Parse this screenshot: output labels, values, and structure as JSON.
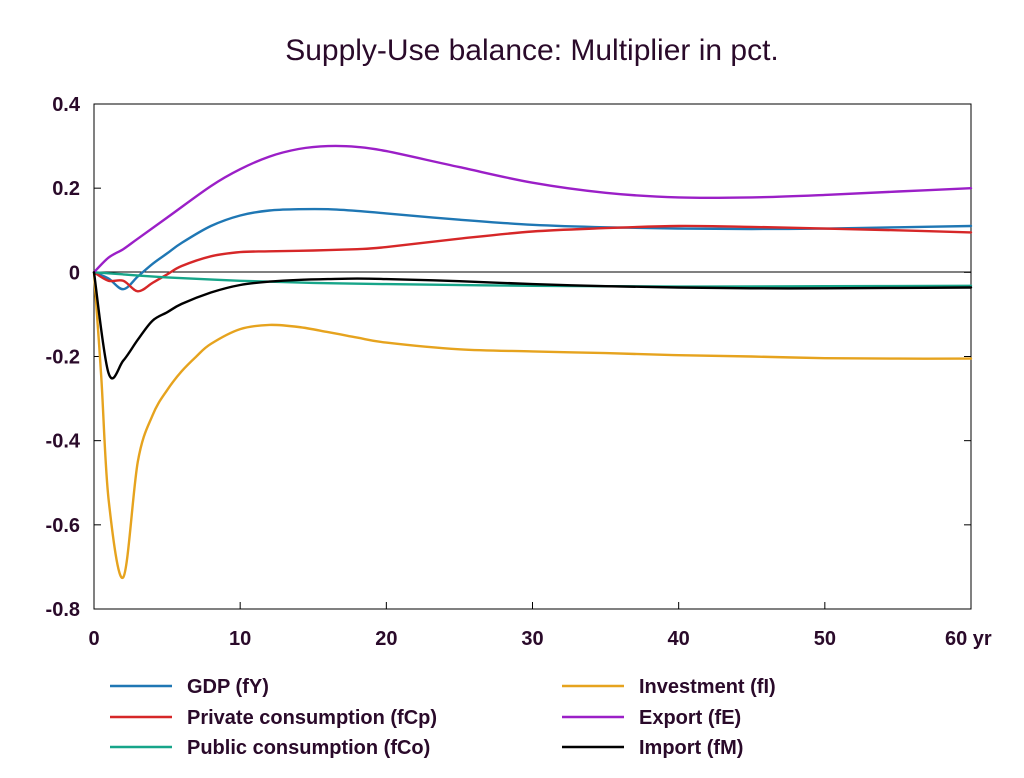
{
  "chart_data": {
    "type": "line",
    "title": "Supply-Use balance: Multiplier in pct.",
    "xlabel": "",
    "ylabel": "",
    "xlim": [
      0,
      60
    ],
    "ylim": [
      -0.8,
      0.4
    ],
    "x_ticks": [
      "0",
      "10",
      "20",
      "30",
      "40",
      "50",
      "60 yr"
    ],
    "x_tick_values": [
      0,
      10,
      20,
      30,
      40,
      50,
      60
    ],
    "y_ticks": [
      "0.4",
      "0.2",
      "0",
      "-0.2",
      "-0.4",
      "-0.6",
      "-0.8"
    ],
    "y_tick_values": [
      0.4,
      0.2,
      0,
      -0.2,
      -0.4,
      -0.6,
      -0.8
    ],
    "grid": false,
    "legend_position": "bottom",
    "series": [
      {
        "name": "GDP (fY)",
        "color": "#1f77b4",
        "x": [
          0,
          1,
          2,
          3,
          4,
          5,
          6,
          8,
          10,
          12,
          14,
          16,
          18,
          20,
          25,
          30,
          35,
          40,
          45,
          50,
          55,
          60
        ],
        "values": [
          0,
          -0.015,
          -0.04,
          -0.01,
          0.02,
          0.045,
          0.07,
          0.11,
          0.135,
          0.147,
          0.15,
          0.15,
          0.146,
          0.14,
          0.125,
          0.113,
          0.107,
          0.104,
          0.103,
          0.104,
          0.107,
          0.11
        ]
      },
      {
        "name": "Private consumption (fCp)",
        "color": "#d62728",
        "x": [
          0,
          1,
          2,
          3,
          4,
          5,
          6,
          8,
          10,
          12,
          15,
          18,
          20,
          25,
          30,
          35,
          40,
          45,
          50,
          55,
          60
        ],
        "values": [
          0,
          -0.02,
          -0.02,
          -0.045,
          -0.025,
          -0.005,
          0.015,
          0.038,
          0.048,
          0.05,
          0.052,
          0.055,
          0.06,
          0.08,
          0.097,
          0.105,
          0.11,
          0.108,
          0.104,
          0.1,
          0.095
        ]
      },
      {
        "name": "Public consumption (fCo)",
        "color": "#17a589",
        "x": [
          0,
          2,
          5,
          10,
          15,
          20,
          30,
          40,
          50,
          60
        ],
        "values": [
          0,
          -0.005,
          -0.012,
          -0.02,
          -0.025,
          -0.028,
          -0.032,
          -0.034,
          -0.033,
          -0.032
        ]
      },
      {
        "name": "Investment (fI)",
        "color": "#e6a31e",
        "x": [
          0,
          0.5,
          1,
          2,
          3,
          4,
          5,
          6,
          7,
          8,
          10,
          12,
          14,
          16,
          18,
          20,
          25,
          30,
          35,
          40,
          45,
          50,
          55,
          60
        ],
        "values": [
          0,
          -0.25,
          -0.54,
          -0.725,
          -0.45,
          -0.34,
          -0.28,
          -0.235,
          -0.2,
          -0.17,
          -0.135,
          -0.125,
          -0.13,
          -0.142,
          -0.155,
          -0.167,
          -0.183,
          -0.188,
          -0.192,
          -0.197,
          -0.2,
          -0.204,
          -0.205,
          -0.205
        ]
      },
      {
        "name": "Export (fE)",
        "color": "#9b1fc7",
        "x": [
          0,
          1,
          2,
          3,
          5,
          8,
          10,
          12,
          14,
          16,
          18,
          20,
          25,
          30,
          35,
          40,
          45,
          50,
          55,
          60
        ],
        "values": [
          0,
          0.035,
          0.055,
          0.08,
          0.13,
          0.205,
          0.245,
          0.275,
          0.293,
          0.3,
          0.298,
          0.288,
          0.25,
          0.213,
          0.189,
          0.178,
          0.178,
          0.184,
          0.192,
          0.2
        ]
      },
      {
        "name": "Import (fM)",
        "color": "#000000",
        "x": [
          0,
          1,
          2,
          3,
          4,
          5,
          6,
          8,
          10,
          12,
          14,
          16,
          18,
          20,
          25,
          30,
          35,
          40,
          45,
          50,
          55,
          60
        ],
        "values": [
          0,
          -0.24,
          -0.21,
          -0.16,
          -0.115,
          -0.095,
          -0.075,
          -0.048,
          -0.03,
          -0.022,
          -0.018,
          -0.016,
          -0.015,
          -0.016,
          -0.021,
          -0.028,
          -0.033,
          -0.036,
          -0.038,
          -0.038,
          -0.037,
          -0.036
        ]
      }
    ],
    "legend_columns": [
      [
        0,
        1,
        2
      ],
      [
        3,
        4,
        5
      ]
    ]
  }
}
